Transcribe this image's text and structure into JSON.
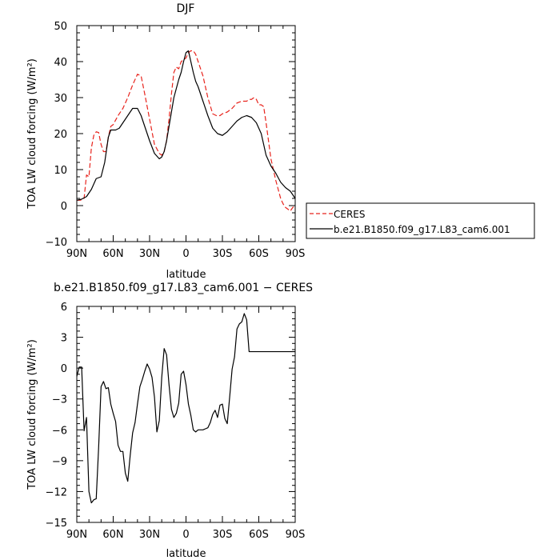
{
  "chart_data": [
    {
      "type": "line",
      "title": "DJF",
      "xlabel": "latitude",
      "ylabel": "TOA LW cloud forcing (W/m²)",
      "xlim": [
        -90,
        90
      ],
      "ylim": [
        -10,
        50
      ],
      "xticks": [
        -90,
        -60,
        -30,
        0,
        30,
        60,
        90
      ],
      "xticklabels": [
        "90N",
        "60N",
        "30N",
        "0",
        "30S",
        "60S",
        "90S"
      ],
      "yticks": [
        -10,
        0,
        10,
        20,
        30,
        40,
        50
      ],
      "yticklabels": [
        "−10",
        "0",
        "10",
        "20",
        "30",
        "40",
        "50"
      ],
      "grid": false,
      "legend_position": "right",
      "series": [
        {
          "name": "CERES",
          "color": "#e8241d",
          "dash": "dashed",
          "x": [
            -90,
            -87,
            -84,
            -82,
            -80,
            -78,
            -76,
            -74,
            -72,
            -70,
            -68,
            -66,
            -64,
            -62,
            -60,
            -56,
            -52,
            -48,
            -44,
            -40,
            -37,
            -34,
            -30,
            -26,
            -22,
            -20,
            -18,
            -16,
            -14,
            -12,
            -10,
            -8,
            -6,
            -4,
            -2,
            0,
            2,
            4,
            6,
            8,
            10,
            14,
            18,
            22,
            25,
            28,
            30,
            34,
            38,
            42,
            46,
            50,
            52,
            54,
            56,
            58,
            60,
            62,
            64,
            66,
            68,
            70,
            72,
            74,
            76,
            78,
            80,
            82,
            84,
            86,
            88,
            90
          ],
          "y": [
            1.5,
            1.5,
            2,
            8.5,
            8,
            16,
            19.5,
            20.5,
            20.3,
            17,
            15,
            15,
            19,
            22,
            22.5,
            25,
            27,
            30,
            33.5,
            36.5,
            36,
            31,
            24,
            17,
            14.5,
            14,
            15,
            18,
            24,
            31,
            37,
            38.5,
            38,
            40,
            40.5,
            41,
            42.5,
            43,
            43,
            42,
            40,
            36,
            30,
            25.5,
            25,
            25,
            25.5,
            26,
            27,
            28.5,
            29,
            29,
            29.5,
            29.5,
            30,
            29.5,
            28,
            28,
            27.5,
            23,
            18,
            13,
            10,
            7,
            4.5,
            2,
            0.5,
            -0.5,
            -1,
            -1.5,
            -0.5,
            0
          ]
        },
        {
          "name": "b.e21.B1850.f09_g17.L83_cam6.001",
          "color": "#000000",
          "dash": "solid",
          "x": [
            -90,
            -86,
            -82,
            -78,
            -74,
            -70,
            -67,
            -64,
            -62,
            -60,
            -58,
            -55,
            -52,
            -48,
            -44,
            -40,
            -37,
            -34,
            -30,
            -26,
            -22,
            -20,
            -18,
            -16,
            -14,
            -12,
            -10,
            -8,
            -6,
            -4,
            -2,
            0,
            2,
            4,
            6,
            8,
            10,
            14,
            18,
            22,
            26,
            30,
            34,
            38,
            42,
            46,
            50,
            54,
            58,
            62,
            66,
            70,
            74,
            78,
            82,
            86,
            90
          ],
          "y": [
            1.5,
            1.8,
            2.5,
            4.5,
            7.5,
            8,
            12,
            19,
            21,
            21,
            21,
            21.5,
            23,
            25,
            27,
            27,
            25,
            22,
            18,
            14.5,
            13,
            13.5,
            15,
            18,
            22,
            26,
            30,
            32.5,
            35,
            37,
            40,
            42.5,
            43,
            40,
            37,
            34.5,
            33,
            29,
            25,
            21.5,
            20,
            19.5,
            20.5,
            22,
            23.5,
            24.5,
            25,
            24.5,
            23,
            20,
            14,
            11,
            9,
            6.5,
            5,
            4,
            2
          ]
        }
      ]
    },
    {
      "type": "line",
      "title": "b.e21.B1850.f09_g17.L83_cam6.001 − CERES",
      "xlabel": "latitude",
      "ylabel": "TOA LW cloud forcing (W/m²)",
      "xlim": [
        -90,
        90
      ],
      "ylim": [
        -15,
        6
      ],
      "xticks": [
        -90,
        -60,
        -30,
        0,
        30,
        60,
        90
      ],
      "xticklabels": [
        "90N",
        "60N",
        "30N",
        "0",
        "30S",
        "60S",
        "90S"
      ],
      "yticks": [
        -15,
        -12,
        -9,
        -6,
        -3,
        0,
        3,
        6
      ],
      "yticklabels": [
        "−15",
        "−12",
        "−9",
        "−6",
        "−3",
        "0",
        "3",
        "6"
      ],
      "grid": false,
      "series": [
        {
          "color": "#000000",
          "x": [
            -90,
            -88,
            -86,
            -84,
            -82,
            -80,
            -78,
            -76,
            -74,
            -72,
            -70,
            -68,
            -66,
            -64,
            -62,
            -60,
            -58,
            -56,
            -54,
            -52,
            -50,
            -48,
            -46,
            -44,
            -42,
            -40,
            -38,
            -36,
            -34,
            -32,
            -30,
            -28,
            -26,
            -24,
            -22,
            -20,
            -18,
            -16,
            -14,
            -12,
            -10,
            -8,
            -6,
            -4,
            -2,
            0,
            2,
            4,
            6,
            8,
            10,
            12,
            14,
            16,
            18,
            20,
            22,
            24,
            26,
            28,
            30,
            32,
            34,
            36,
            38,
            40,
            42,
            44,
            46,
            48,
            50,
            52,
            54,
            56,
            58,
            60,
            62,
            64,
            66,
            68,
            70,
            72,
            74,
            76,
            78,
            80,
            82,
            84,
            86,
            88,
            90
          ],
          "y": [
            -0.8,
            0.1,
            0.1,
            -6.1,
            -4.8,
            -12,
            -13.1,
            -12.8,
            -12.7,
            -7.7,
            -1.8,
            -1.3,
            -2,
            -1.9,
            -3.5,
            -4.4,
            -5.2,
            -7.5,
            -8.1,
            -8.1,
            -10.2,
            -11,
            -8.5,
            -6.3,
            -5.3,
            -3.5,
            -1.8,
            -1.1,
            -0.3,
            0.4,
            -0.1,
            -0.9,
            -2.8,
            -6.2,
            -5.1,
            -0.9,
            1.9,
            1.3,
            -1.6,
            -4,
            -4.8,
            -4.4,
            -3.4,
            -0.6,
            -0.3,
            -1.6,
            -3.5,
            -4.6,
            -6,
            -6.2,
            -6,
            -6,
            -6,
            -5.9,
            -5.8,
            -5.3,
            -4.5,
            -4.1,
            -4.8,
            -3.6,
            -3.5,
            -4.9,
            -5.4,
            -2.8,
            -0.1,
            1.1,
            3.8,
            4.3,
            4.5,
            5.3,
            4.7,
            1.6,
            1.6,
            1.6,
            1.6,
            1.6,
            1.6,
            1.6,
            1.6,
            1.6,
            1.6,
            1.6,
            1.6,
            1.6,
            1.6,
            1.6,
            1.6,
            1.6,
            1.6,
            1.6,
            1.6
          ]
        }
      ]
    }
  ]
}
